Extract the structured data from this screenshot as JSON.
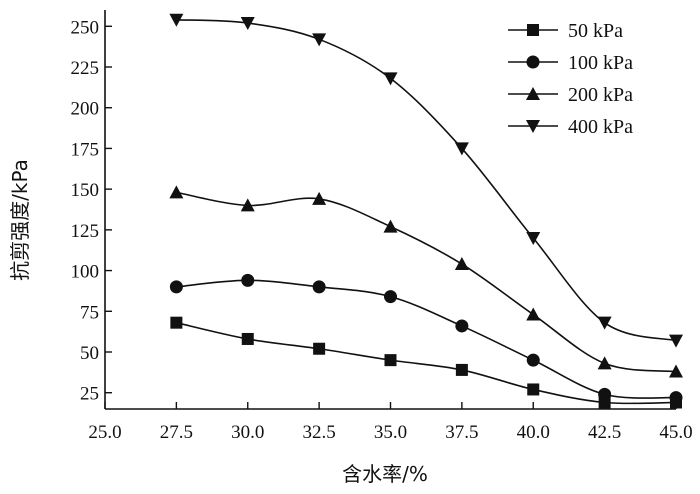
{
  "chart_data": {
    "type": "line",
    "xlabel": "含水率/%",
    "ylabel": "抗剪强度/kPa",
    "xlim": [
      25.0,
      45.0
    ],
    "ylim": [
      15,
      260
    ],
    "x_ticks": [
      25.0,
      27.5,
      30.0,
      32.5,
      35.0,
      37.5,
      40.0,
      42.5,
      45.0
    ],
    "x_tick_labels": [
      "25.0",
      "27.5",
      "30.0",
      "32.5",
      "35.0",
      "37.5",
      "40.0",
      "42.5",
      "45.0"
    ],
    "y_ticks": [
      25,
      50,
      75,
      100,
      125,
      150,
      175,
      200,
      225,
      250
    ],
    "y_tick_labels": [
      "25",
      "50",
      "75",
      "100",
      "125",
      "150",
      "175",
      "200",
      "225",
      "250"
    ],
    "x": [
      27.5,
      30.0,
      32.5,
      35.0,
      37.5,
      40.0,
      42.5,
      45.0
    ],
    "grid": false,
    "legend_position": "top-right",
    "series": [
      {
        "name": "50 kPa",
        "marker": "square",
        "values": [
          68,
          58,
          52,
          45,
          39,
          27,
          19,
          19
        ]
      },
      {
        "name": "100 kPa",
        "marker": "circle",
        "values": [
          90,
          94,
          90,
          84,
          66,
          45,
          24,
          22
        ]
      },
      {
        "name": "200 kPa",
        "marker": "triangle-up",
        "values": [
          148,
          140,
          144,
          127,
          104,
          73,
          43,
          38
        ]
      },
      {
        "name": "400 kPa",
        "marker": "triangle-down",
        "values": [
          254,
          252,
          242,
          218,
          175,
          120,
          68,
          57
        ]
      }
    ]
  }
}
